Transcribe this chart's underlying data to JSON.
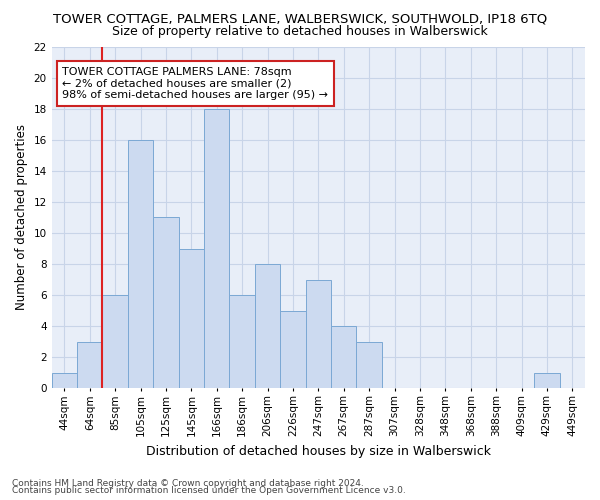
{
  "title": "TOWER COTTAGE, PALMERS LANE, WALBERSWICK, SOUTHWOLD, IP18 6TQ",
  "subtitle": "Size of property relative to detached houses in Walberswick",
  "xlabel": "Distribution of detached houses by size in Walberswick",
  "ylabel": "Number of detached properties",
  "categories": [
    "44sqm",
    "64sqm",
    "85sqm",
    "105sqm",
    "125sqm",
    "145sqm",
    "166sqm",
    "186sqm",
    "206sqm",
    "226sqm",
    "247sqm",
    "267sqm",
    "287sqm",
    "307sqm",
    "328sqm",
    "348sqm",
    "368sqm",
    "388sqm",
    "409sqm",
    "429sqm",
    "449sqm"
  ],
  "bar_heights": [
    1,
    3,
    6,
    16,
    11,
    9,
    18,
    6,
    8,
    5,
    7,
    4,
    3,
    0,
    0,
    0,
    0,
    0,
    0,
    1,
    0
  ],
  "bar_color": "#ccdaf0",
  "bar_edge_color": "#7ba8d4",
  "highlight_bar_index": 1,
  "highlight_line_color": "#dd2222",
  "annotation_text": "TOWER COTTAGE PALMERS LANE: 78sqm\n← 2% of detached houses are smaller (2)\n98% of semi-detached houses are larger (95) →",
  "annotation_box_color": "#ffffff",
  "annotation_box_edge_color": "#cc2222",
  "ylim": [
    0,
    22
  ],
  "yticks": [
    0,
    2,
    4,
    6,
    8,
    10,
    12,
    14,
    16,
    18,
    20,
    22
  ],
  "grid_color": "#c8d4e8",
  "bg_color": "#e8eef8",
  "footer1": "Contains HM Land Registry data © Crown copyright and database right 2024.",
  "footer2": "Contains public sector information licensed under the Open Government Licence v3.0.",
  "title_fontsize": 9.5,
  "subtitle_fontsize": 9,
  "xlabel_fontsize": 9,
  "ylabel_fontsize": 8.5,
  "tick_fontsize": 7.5,
  "footer_fontsize": 6.5,
  "annotation_fontsize": 8
}
